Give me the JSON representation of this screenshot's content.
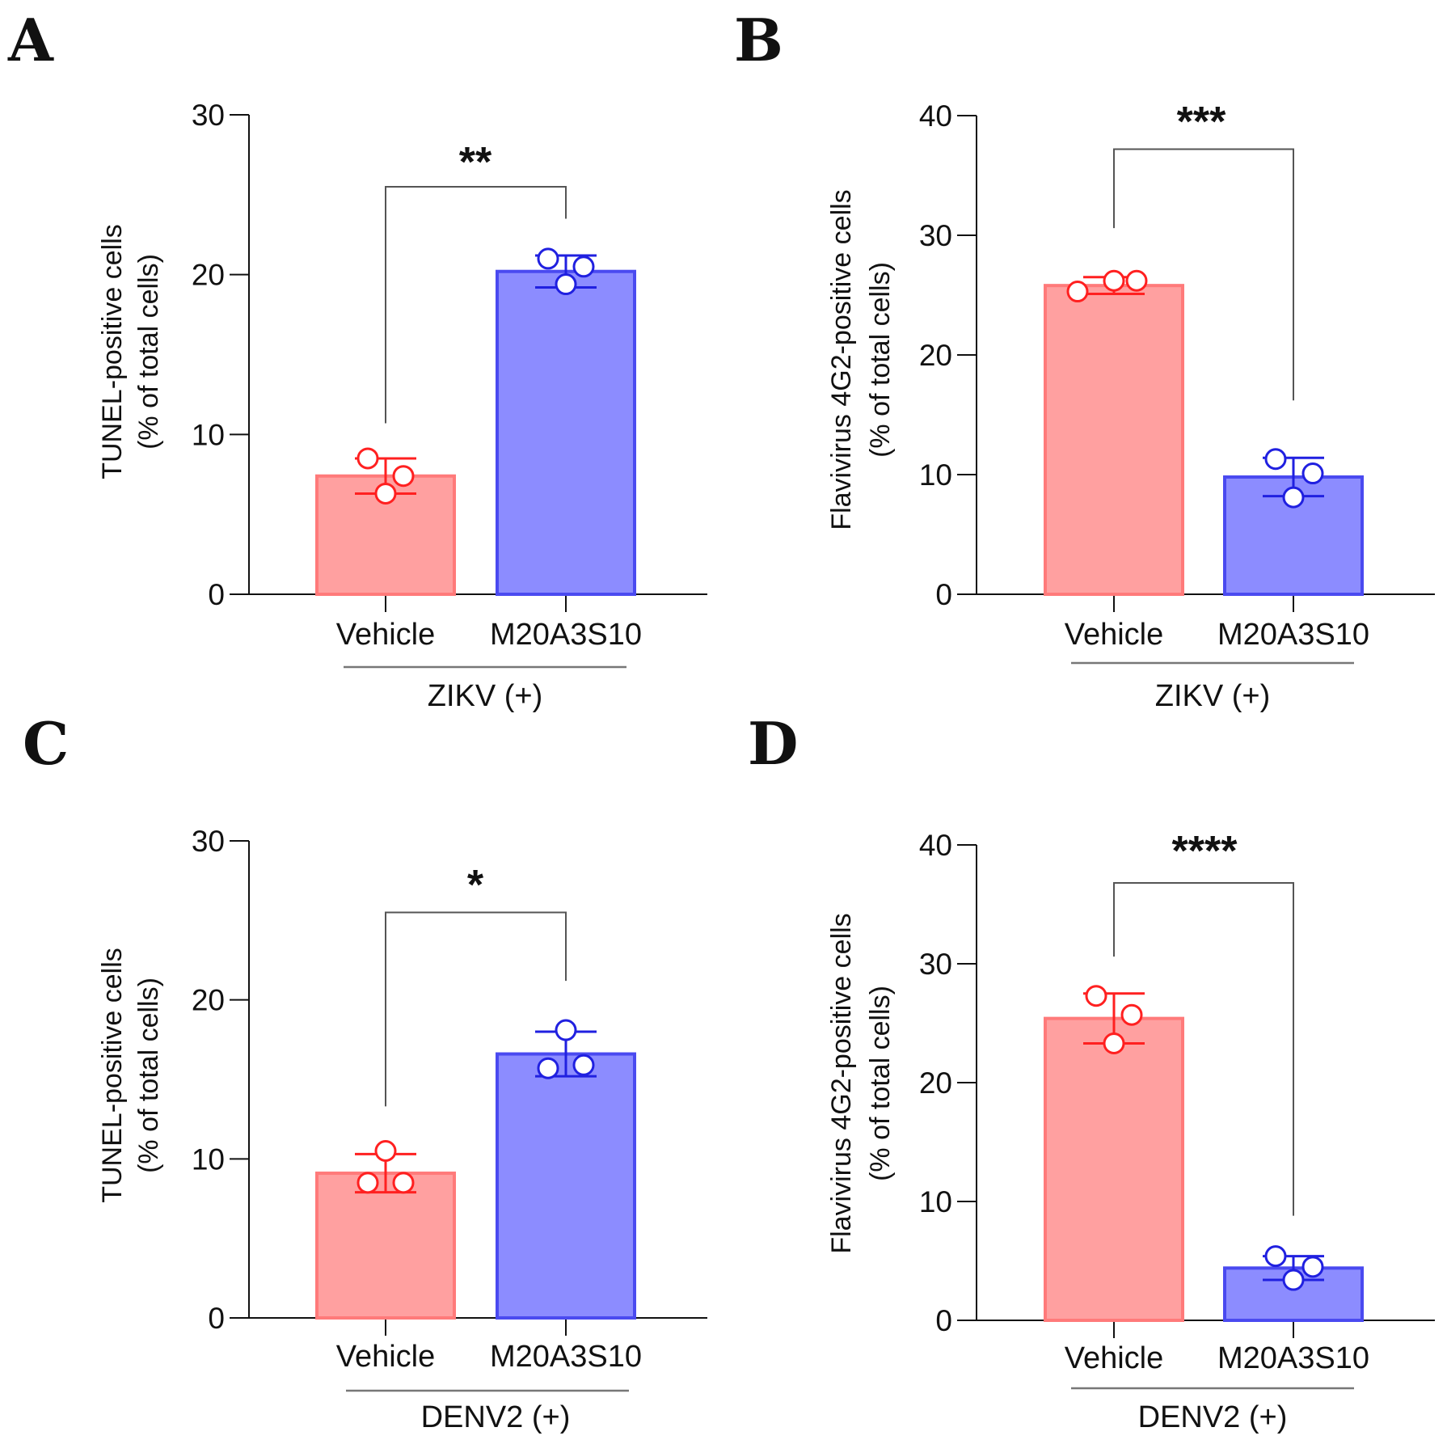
{
  "colors": {
    "vehicle_fill": "#FFA0A0",
    "vehicle_stroke": "#FF7A7A",
    "vehicle_err": "#FF2020",
    "drug_fill": "#8C8CFF",
    "drug_stroke": "#4A4AF0",
    "drug_err": "#2020E0",
    "axis": "#111111",
    "bracket": "#555555",
    "group_line": "#777777"
  },
  "chart_data": [
    {
      "panel": "A",
      "type": "bar",
      "ylabel_line1": "TUNEL-positive cells",
      "ylabel_line2": "(% of total cells)",
      "ylim": [
        0,
        30
      ],
      "yticks": [
        0,
        10,
        20,
        30
      ],
      "categories": [
        "Vehicle",
        "M20A3S10"
      ],
      "group": "ZIKV (+)",
      "values": [
        7.4,
        20.2
      ],
      "errors": [
        1.1,
        1.0
      ],
      "points": [
        [
          8.5,
          7.4,
          6.3
        ],
        [
          21.0,
          20.5,
          19.4
        ]
      ],
      "significance": "**",
      "bracket_y": 25.5,
      "bracket_left_bottom": 10.7,
      "bracket_right_bottom": 23.5
    },
    {
      "panel": "B",
      "type": "bar",
      "ylabel_line1": "Flavivirus 4G2-positive cells",
      "ylabel_line2": "(% of total cells)",
      "ylim": [
        0,
        40
      ],
      "yticks": [
        0,
        10,
        20,
        30,
        40
      ],
      "categories": [
        "Vehicle",
        "M20A3S10"
      ],
      "group": "ZIKV (+)",
      "values": [
        25.8,
        9.8
      ],
      "errors": [
        0.7,
        1.6
      ],
      "points": [
        [
          25.3,
          26.2,
          26.2
        ],
        [
          11.3,
          10.1,
          8.1
        ]
      ],
      "significance": "***",
      "bracket_y": 37.2,
      "bracket_left_bottom": 30.6,
      "bracket_right_bottom": 16.2
    },
    {
      "panel": "C",
      "type": "bar",
      "ylabel_line1": "TUNEL-positive cells",
      "ylabel_line2": "(% of total cells)",
      "ylim": [
        0,
        30
      ],
      "yticks": [
        0,
        10,
        20,
        30
      ],
      "categories": [
        "Vehicle",
        "M20A3S10"
      ],
      "group": "DENV2 (+)",
      "values": [
        9.1,
        16.6
      ],
      "errors": [
        1.2,
        1.4
      ],
      "points": [
        [
          10.5,
          8.5,
          8.5
        ],
        [
          18.1,
          15.7,
          15.9
        ]
      ],
      "significance": "*",
      "bracket_y": 25.5,
      "bracket_left_bottom": 13.3,
      "bracket_right_bottom": 21.2
    },
    {
      "panel": "D",
      "type": "bar",
      "ylabel_line1": "Flavivirus 4G2-positive cells",
      "ylabel_line2": "(% of total cells)",
      "ylim": [
        0,
        40
      ],
      "yticks": [
        0,
        10,
        20,
        30,
        40
      ],
      "categories": [
        "Vehicle",
        "M20A3S10"
      ],
      "group": "DENV2 (+)",
      "values": [
        25.4,
        4.4
      ],
      "errors": [
        2.1,
        1.0
      ],
      "points": [
        [
          27.3,
          25.7,
          23.3
        ],
        [
          5.4,
          4.5,
          3.4
        ]
      ],
      "significance": "****",
      "bracket_y": 36.8,
      "bracket_left_bottom": 30.6,
      "bracket_right_bottom": 8.8
    }
  ]
}
